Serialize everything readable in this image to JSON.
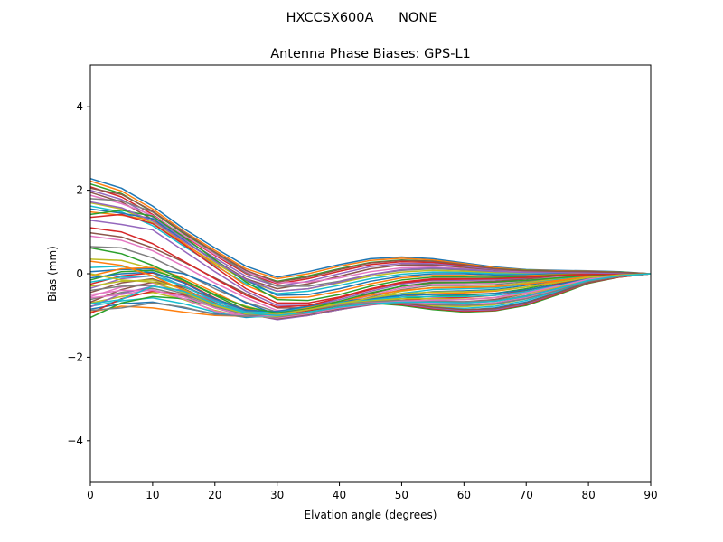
{
  "suptitle": "HXCCSX600A      NONE",
  "chart_data": {
    "type": "line",
    "title": "Antenna Phase Biases: GPS-L1",
    "xlabel": "Elvation angle (degrees)",
    "ylabel": "Bias (mm)",
    "xlim": [
      0,
      90
    ],
    "ylim": [
      -5,
      5
    ],
    "xticks": [
      0,
      10,
      20,
      30,
      40,
      50,
      60,
      70,
      80,
      90
    ],
    "yticks": [
      -4,
      -2,
      0,
      2,
      4
    ],
    "ytick_labels": [
      "−4",
      "−2",
      "0",
      "2",
      "4"
    ],
    "grid": false,
    "legend": false,
    "colors": [
      "#1f77b4",
      "#ff7f0e",
      "#2ca02c",
      "#d62728",
      "#9467bd",
      "#8c564b",
      "#e377c2",
      "#7f7f7f",
      "#bcbd22",
      "#17becf"
    ],
    "x": [
      0,
      5,
      10,
      15,
      20,
      25,
      30,
      35,
      40,
      45,
      50,
      55,
      60,
      65,
      70,
      75,
      80,
      85,
      90
    ],
    "series": [
      {
        "values": [
          2.28,
          2.05,
          1.62,
          1.08,
          0.62,
          0.18,
          -0.08,
          0.05,
          0.22,
          0.36,
          0.4,
          0.36,
          0.26,
          0.16,
          0.1,
          0.08,
          0.07,
          0.05,
          0.0
        ]
      },
      {
        "values": [
          2.22,
          1.98,
          1.55,
          1.02,
          0.56,
          0.12,
          -0.12,
          0.0,
          0.18,
          0.32,
          0.37,
          0.33,
          0.24,
          0.14,
          0.09,
          0.07,
          0.06,
          0.04,
          0.0
        ]
      },
      {
        "values": [
          2.15,
          1.92,
          1.48,
          0.96,
          0.5,
          0.06,
          -0.18,
          -0.05,
          0.12,
          0.27,
          0.33,
          0.3,
          0.21,
          0.12,
          0.08,
          0.06,
          0.05,
          0.04,
          0.0
        ]
      },
      {
        "values": [
          2.08,
          1.84,
          1.42,
          0.9,
          0.44,
          0.0,
          -0.24,
          -0.12,
          0.06,
          0.22,
          0.29,
          0.27,
          0.19,
          0.1,
          0.06,
          0.05,
          0.05,
          0.03,
          0.0
        ]
      },
      {
        "values": [
          2.0,
          1.78,
          1.36,
          0.84,
          0.38,
          -0.06,
          -0.3,
          -0.18,
          0.0,
          0.17,
          0.25,
          0.24,
          0.17,
          0.09,
          0.05,
          0.05,
          0.04,
          0.03,
          0.0
        ]
      },
      {
        "values": [
          1.95,
          1.72,
          1.3,
          0.78,
          0.32,
          -0.12,
          -0.36,
          -0.24,
          -0.06,
          0.12,
          0.21,
          0.21,
          0.15,
          0.07,
          0.04,
          0.04,
          0.04,
          0.03,
          0.0
        ]
      },
      {
        "values": [
          1.88,
          1.68,
          1.4,
          0.92,
          0.46,
          0.05,
          -0.22,
          -0.2,
          -0.1,
          0.05,
          0.14,
          0.16,
          0.12,
          0.06,
          0.04,
          0.04,
          0.03,
          0.02,
          0.0
        ]
      },
      {
        "values": [
          1.8,
          1.75,
          1.48,
          1.0,
          0.5,
          0.02,
          -0.3,
          -0.3,
          -0.18,
          -0.02,
          0.08,
          0.12,
          0.09,
          0.04,
          0.03,
          0.03,
          0.03,
          0.02,
          0.0
        ]
      },
      {
        "values": [
          1.7,
          1.55,
          1.22,
          0.72,
          0.26,
          -0.18,
          -0.42,
          -0.36,
          -0.22,
          -0.06,
          0.04,
          0.08,
          0.06,
          0.02,
          0.01,
          0.02,
          0.02,
          0.01,
          0.0
        ]
      },
      {
        "values": [
          1.62,
          1.48,
          1.15,
          0.66,
          0.2,
          -0.24,
          -0.48,
          -0.42,
          -0.28,
          -0.12,
          -0.01,
          0.04,
          0.03,
          0.0,
          -0.01,
          0.01,
          0.01,
          0.01,
          0.0
        ]
      },
      {
        "values": [
          1.55,
          1.45,
          1.32,
          0.8,
          0.3,
          -0.15,
          -0.52,
          -0.5,
          -0.36,
          -0.18,
          -0.06,
          0.0,
          0.0,
          -0.03,
          -0.03,
          0.0,
          0.01,
          0.01,
          0.0
        ]
      },
      {
        "values": [
          1.48,
          1.4,
          1.28,
          0.74,
          0.22,
          -0.28,
          -0.58,
          -0.56,
          -0.42,
          -0.24,
          -0.1,
          -0.04,
          -0.04,
          -0.06,
          -0.05,
          -0.02,
          0.0,
          0.0,
          0.0
        ]
      },
      {
        "values": [
          1.42,
          1.52,
          1.38,
          0.88,
          0.34,
          -0.2,
          -0.62,
          -0.64,
          -0.5,
          -0.3,
          -0.15,
          -0.08,
          -0.08,
          -0.09,
          -0.07,
          -0.03,
          -0.01,
          0.0,
          0.0
        ]
      },
      {
        "values": [
          1.35,
          1.42,
          1.2,
          0.7,
          0.16,
          -0.36,
          -0.7,
          -0.7,
          -0.56,
          -0.36,
          -0.2,
          -0.12,
          -0.12,
          -0.12,
          -0.09,
          -0.04,
          -0.01,
          0.0,
          0.0
        ]
      },
      {
        "values": [
          1.28,
          1.18,
          1.05,
          0.55,
          0.05,
          -0.42,
          -0.76,
          -0.76,
          -0.62,
          -0.42,
          -0.25,
          -0.16,
          -0.16,
          -0.15,
          -0.11,
          -0.06,
          -0.02,
          0.0,
          0.0
        ]
      },
      {
        "values": [
          0.98,
          0.88,
          0.62,
          0.28,
          -0.1,
          -0.48,
          -0.82,
          -0.82,
          -0.68,
          -0.48,
          -0.3,
          -0.2,
          -0.2,
          -0.18,
          -0.13,
          -0.07,
          -0.02,
          -0.01,
          0.0
        ]
      },
      {
        "values": [
          0.9,
          0.8,
          0.55,
          0.18,
          -0.22,
          -0.58,
          -0.88,
          -0.86,
          -0.72,
          -0.52,
          -0.34,
          -0.24,
          -0.24,
          -0.22,
          -0.16,
          -0.08,
          -0.03,
          -0.01,
          0.0
        ]
      },
      {
        "values": [
          0.65,
          0.62,
          0.38,
          0.02,
          -0.36,
          -0.68,
          -0.92,
          -0.9,
          -0.76,
          -0.56,
          -0.38,
          -0.28,
          -0.28,
          -0.26,
          -0.19,
          -0.1,
          -0.04,
          -0.01,
          0.0
        ]
      },
      {
        "values": [
          0.35,
          0.32,
          0.12,
          -0.18,
          -0.5,
          -0.78,
          -0.96,
          -0.92,
          -0.78,
          -0.6,
          -0.42,
          -0.33,
          -0.32,
          -0.3,
          -0.22,
          -0.12,
          -0.05,
          -0.02,
          0.0
        ]
      },
      {
        "values": [
          0.15,
          0.18,
          0.02,
          -0.3,
          -0.62,
          -0.88,
          -1.0,
          -0.96,
          -0.82,
          -0.64,
          -0.47,
          -0.38,
          -0.36,
          -0.34,
          -0.25,
          -0.14,
          -0.06,
          -0.02,
          0.0
        ]
      },
      {
        "values": [
          0.05,
          0.1,
          0.12,
          0.0,
          -0.3,
          -0.7,
          -0.98,
          -0.98,
          -0.86,
          -0.68,
          -0.52,
          -0.43,
          -0.41,
          -0.38,
          -0.28,
          -0.16,
          -0.07,
          -0.02,
          0.0
        ]
      },
      {
        "values": [
          -0.05,
          0.12,
          0.15,
          -0.1,
          -0.45,
          -0.82,
          -1.02,
          -0.98,
          -0.84,
          -0.7,
          -0.56,
          -0.48,
          -0.46,
          -0.42,
          -0.32,
          -0.18,
          -0.08,
          -0.03,
          0.0
        ]
      },
      {
        "values": [
          -0.15,
          0.05,
          0.08,
          -0.15,
          -0.52,
          -0.88,
          -1.05,
          -1.0,
          -0.86,
          -0.72,
          -0.6,
          -0.54,
          -0.52,
          -0.47,
          -0.36,
          -0.21,
          -0.09,
          -0.03,
          0.0
        ]
      },
      {
        "values": [
          -0.25,
          -0.05,
          0.02,
          -0.2,
          -0.58,
          -0.92,
          -1.08,
          -1.0,
          -0.86,
          -0.74,
          -0.64,
          -0.59,
          -0.57,
          -0.52,
          -0.4,
          -0.24,
          -0.1,
          -0.04,
          0.0
        ]
      },
      {
        "values": [
          -0.35,
          -0.12,
          -0.05,
          -0.28,
          -0.64,
          -0.96,
          -1.1,
          -1.0,
          -0.86,
          -0.75,
          -0.67,
          -0.64,
          -0.62,
          -0.57,
          -0.44,
          -0.27,
          -0.12,
          -0.04,
          0.0
        ]
      },
      {
        "values": [
          -0.45,
          -0.22,
          -0.12,
          -0.36,
          -0.7,
          -0.98,
          -1.08,
          -0.98,
          -0.84,
          -0.74,
          -0.69,
          -0.68,
          -0.67,
          -0.62,
          -0.48,
          -0.3,
          -0.13,
          -0.05,
          0.0
        ]
      },
      {
        "values": [
          -0.55,
          -0.32,
          -0.22,
          -0.44,
          -0.76,
          -1.0,
          -1.06,
          -0.96,
          -0.82,
          -0.73,
          -0.7,
          -0.71,
          -0.71,
          -0.66,
          -0.52,
          -0.33,
          -0.15,
          -0.05,
          0.0
        ]
      },
      {
        "values": [
          -0.62,
          -0.45,
          -0.35,
          -0.52,
          -0.82,
          -1.02,
          -1.04,
          -0.94,
          -0.8,
          -0.72,
          -0.71,
          -0.74,
          -0.75,
          -0.7,
          -0.56,
          -0.36,
          -0.16,
          -0.06,
          0.0
        ]
      },
      {
        "values": [
          -0.7,
          -0.55,
          -0.45,
          -0.62,
          -0.88,
          -1.04,
          -1.02,
          -0.92,
          -0.79,
          -0.71,
          -0.72,
          -0.77,
          -0.79,
          -0.74,
          -0.6,
          -0.39,
          -0.18,
          -0.06,
          0.0
        ]
      },
      {
        "values": [
          -0.78,
          -0.65,
          -0.58,
          -0.72,
          -0.92,
          -1.05,
          -1.0,
          -0.9,
          -0.78,
          -0.7,
          -0.73,
          -0.8,
          -0.83,
          -0.78,
          -0.64,
          -0.42,
          -0.19,
          -0.07,
          0.0
        ]
      },
      {
        "values": [
          -0.85,
          -0.72,
          -0.68,
          -0.82,
          -0.96,
          -1.04,
          -0.98,
          -0.88,
          -0.77,
          -0.7,
          -0.74,
          -0.83,
          -0.87,
          -0.82,
          -0.68,
          -0.45,
          -0.2,
          -0.07,
          0.0
        ]
      },
      {
        "values": [
          -0.92,
          -0.78,
          -0.82,
          -0.92,
          -1.0,
          -1.02,
          -0.96,
          -0.86,
          -0.76,
          -0.69,
          -0.75,
          -0.85,
          -0.9,
          -0.86,
          -0.72,
          -0.48,
          -0.22,
          -0.08,
          0.0
        ]
      },
      {
        "values": [
          -1.05,
          -0.7,
          -0.55,
          -0.6,
          -0.8,
          -0.98,
          -1.0,
          -0.9,
          -0.78,
          -0.7,
          -0.76,
          -0.86,
          -0.92,
          -0.89,
          -0.76,
          -0.51,
          -0.23,
          -0.08,
          0.0
        ]
      },
      {
        "values": [
          -0.95,
          -0.6,
          -0.42,
          -0.5,
          -0.72,
          -0.92,
          -0.98,
          -0.88,
          -0.76,
          -0.69,
          -0.74,
          -0.84,
          -0.9,
          -0.88,
          -0.74,
          -0.49,
          -0.22,
          -0.08,
          0.0
        ]
      },
      {
        "values": [
          -0.8,
          -0.48,
          -0.3,
          -0.4,
          -0.66,
          -0.9,
          -0.96,
          -0.86,
          -0.74,
          -0.68,
          -0.72,
          -0.82,
          -0.88,
          -0.86,
          -0.72,
          -0.47,
          -0.21,
          -0.07,
          0.0
        ]
      },
      {
        "values": [
          -0.68,
          -0.38,
          -0.2,
          -0.32,
          -0.6,
          -0.86,
          -0.94,
          -0.84,
          -0.72,
          -0.66,
          -0.7,
          -0.8,
          -0.86,
          -0.84,
          -0.7,
          -0.46,
          -0.21,
          -0.07,
          0.0
        ]
      },
      {
        "values": [
          -0.5,
          -0.4,
          -0.4,
          -0.55,
          -0.82,
          -1.0,
          -0.98,
          -0.86,
          -0.74,
          -0.68,
          -0.68,
          -0.72,
          -0.74,
          -0.7,
          -0.58,
          -0.38,
          -0.17,
          -0.06,
          0.0
        ]
      },
      {
        "values": [
          -0.4,
          -0.3,
          -0.28,
          -0.48,
          -0.78,
          -0.98,
          -0.96,
          -0.84,
          -0.72,
          -0.66,
          -0.64,
          -0.66,
          -0.67,
          -0.64,
          -0.53,
          -0.35,
          -0.16,
          -0.05,
          0.0
        ]
      },
      {
        "values": [
          -0.3,
          -0.18,
          -0.15,
          -0.38,
          -0.72,
          -0.96,
          -0.94,
          -0.82,
          -0.7,
          -0.64,
          -0.6,
          -0.6,
          -0.61,
          -0.58,
          -0.48,
          -0.32,
          -0.14,
          -0.05,
          0.0
        ]
      },
      {
        "values": [
          -0.2,
          -0.08,
          -0.05,
          -0.3,
          -0.66,
          -0.92,
          -0.92,
          -0.8,
          -0.68,
          -0.62,
          -0.56,
          -0.55,
          -0.55,
          -0.52,
          -0.43,
          -0.29,
          -0.13,
          -0.04,
          0.0
        ]
      },
      {
        "values": [
          -0.1,
          0.0,
          0.04,
          -0.22,
          -0.6,
          -0.88,
          -0.9,
          -0.78,
          -0.66,
          -0.6,
          -0.52,
          -0.5,
          -0.5,
          -0.47,
          -0.39,
          -0.26,
          -0.12,
          -0.04,
          0.0
        ]
      },
      {
        "values": [
          0.3,
          0.2,
          -0.05,
          -0.4,
          -0.72,
          -0.94,
          -0.96,
          -0.82,
          -0.66,
          -0.52,
          -0.4,
          -0.34,
          -0.33,
          -0.31,
          -0.25,
          -0.16,
          -0.07,
          -0.02,
          0.0
        ]
      },
      {
        "values": [
          0.62,
          0.48,
          0.2,
          -0.15,
          -0.5,
          -0.8,
          -0.94,
          -0.84,
          -0.66,
          -0.46,
          -0.3,
          -0.22,
          -0.21,
          -0.2,
          -0.16,
          -0.1,
          -0.04,
          -0.01,
          0.0
        ]
      },
      {
        "values": [
          1.1,
          1.0,
          0.72,
          0.3,
          -0.12,
          -0.52,
          -0.8,
          -0.76,
          -0.58,
          -0.38,
          -0.22,
          -0.14,
          -0.13,
          -0.12,
          -0.09,
          -0.05,
          -0.02,
          -0.01,
          0.0
        ]
      },
      {
        "values": [
          1.72,
          1.58,
          1.26,
          0.78,
          0.3,
          -0.14,
          -0.42,
          -0.36,
          -0.2,
          -0.02,
          0.1,
          0.14,
          0.11,
          0.06,
          0.03,
          0.03,
          0.02,
          0.01,
          0.0
        ]
      },
      {
        "values": [
          2.05,
          1.9,
          1.5,
          0.98,
          0.52,
          0.08,
          -0.2,
          -0.08,
          0.1,
          0.26,
          0.32,
          0.3,
          0.22,
          0.12,
          0.07,
          0.06,
          0.05,
          0.03,
          0.0
        ]
      },
      {
        "values": [
          -0.58,
          -0.5,
          -0.38,
          -0.6,
          -0.9,
          -1.02,
          -1.0,
          -0.92,
          -0.8,
          -0.72,
          -0.66,
          -0.63,
          -0.62,
          -0.58,
          -0.46,
          -0.3,
          -0.13,
          -0.04,
          0.0
        ]
      },
      {
        "values": [
          -0.88,
          -0.82,
          -0.7,
          -0.8,
          -0.98,
          -1.02,
          -0.96,
          -0.86,
          -0.76,
          -0.7,
          -0.7,
          -0.74,
          -0.76,
          -0.72,
          -0.6,
          -0.4,
          -0.18,
          -0.06,
          0.0
        ]
      },
      {
        "values": [
          0.0,
          -0.15,
          -0.2,
          -0.45,
          -0.76,
          -0.96,
          -0.98,
          -0.86,
          -0.72,
          -0.58,
          -0.48,
          -0.44,
          -0.43,
          -0.4,
          -0.32,
          -0.21,
          -0.09,
          -0.03,
          0.0
        ]
      },
      {
        "values": [
          -0.72,
          -0.62,
          -0.3,
          -0.42,
          -0.72,
          -0.94,
          -1.0,
          -0.92,
          -0.8,
          -0.72,
          -0.68,
          -0.68,
          -0.7,
          -0.66,
          -0.54,
          -0.36,
          -0.16,
          -0.05,
          0.0
        ]
      }
    ]
  }
}
